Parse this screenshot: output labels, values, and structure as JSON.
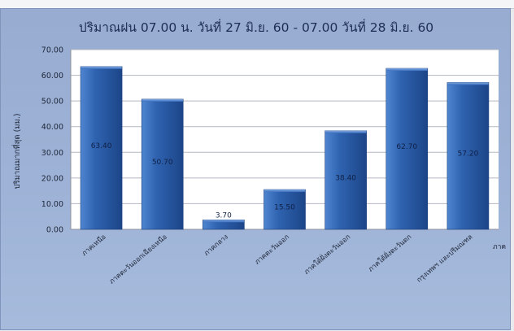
{
  "chart_data": {
    "type": "bar",
    "title": "ปริมาณฝน 07.00 น. วันที่ 27 มิ.ย. 60 - 07.00 วันที่ 28 มิ.ย. 60",
    "xlabel": "ภาค",
    "ylabel": "ปริมาณมากที่สุด (มม.)",
    "categories": [
      "ภาคเหนือ",
      "ภาคตะวันออกเฉียงเหนือ",
      "ภาคกลาง",
      "ภาคตะวันออก",
      "ภาคใต้ฝั่งตะวันออก",
      "ภาคใต้ฝั่งตะวันตก",
      "กรุงเทพฯ และปริมณฑล"
    ],
    "values": [
      63.4,
      50.7,
      3.7,
      15.5,
      38.4,
      62.7,
      57.2
    ],
    "value_labels": [
      "63.40",
      "50.70",
      "3.70",
      "15.50",
      "38.40",
      "62.70",
      "57.20"
    ],
    "ylim": [
      0,
      70
    ],
    "yticks": [
      "0.00",
      "10.00",
      "20.00",
      "30.00",
      "40.00",
      "50.00",
      "60.00",
      "70.00"
    ],
    "grid": true,
    "legend": "none",
    "colors": {
      "bar": "#2f63b0",
      "bar_light": "#4f86d0",
      "bar_dark": "#1c4588",
      "grid": "#b3b8c2",
      "plot_bg": "#ffffff"
    }
  }
}
